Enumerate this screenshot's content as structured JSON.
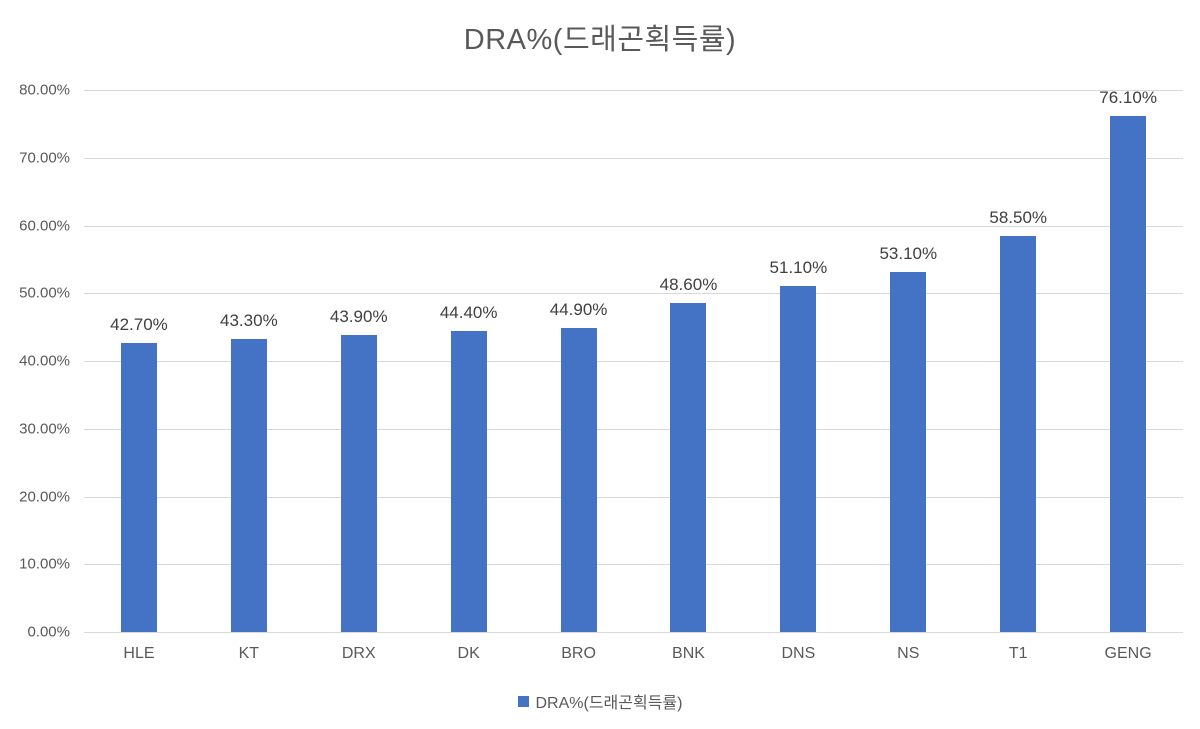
{
  "chart_data": {
    "type": "bar",
    "title": "DRA%(드래곤획득률)",
    "categories": [
      "HLE",
      "KT",
      "DRX",
      "DK",
      "BRO",
      "BNK",
      "DNS",
      "NS",
      "T1",
      "GENG"
    ],
    "values": [
      42.7,
      43.3,
      43.9,
      44.4,
      44.9,
      48.6,
      51.1,
      53.1,
      58.5,
      76.1
    ],
    "data_labels": [
      "42.70%",
      "43.30%",
      "43.90%",
      "44.40%",
      "44.90%",
      "48.60%",
      "51.10%",
      "53.10%",
      "58.50%",
      "76.10%"
    ],
    "xlabel": "",
    "ylabel": "",
    "ylim": [
      0,
      80
    ],
    "ytick_step": 10,
    "ytick_labels": [
      "0.00%",
      "10.00%",
      "20.00%",
      "30.00%",
      "40.00%",
      "50.00%",
      "60.00%",
      "70.00%",
      "80.00%"
    ],
    "grid": true,
    "legend": {
      "position": "bottom",
      "entries": [
        "DRA%(드래곤획득률)"
      ]
    },
    "colors": {
      "bar": "#4472C4",
      "gridline": "#D9D9D9",
      "title_text": "#595959",
      "axis_text": "#595959",
      "data_label_text": "#404040",
      "background": "#FFFFFF"
    }
  }
}
